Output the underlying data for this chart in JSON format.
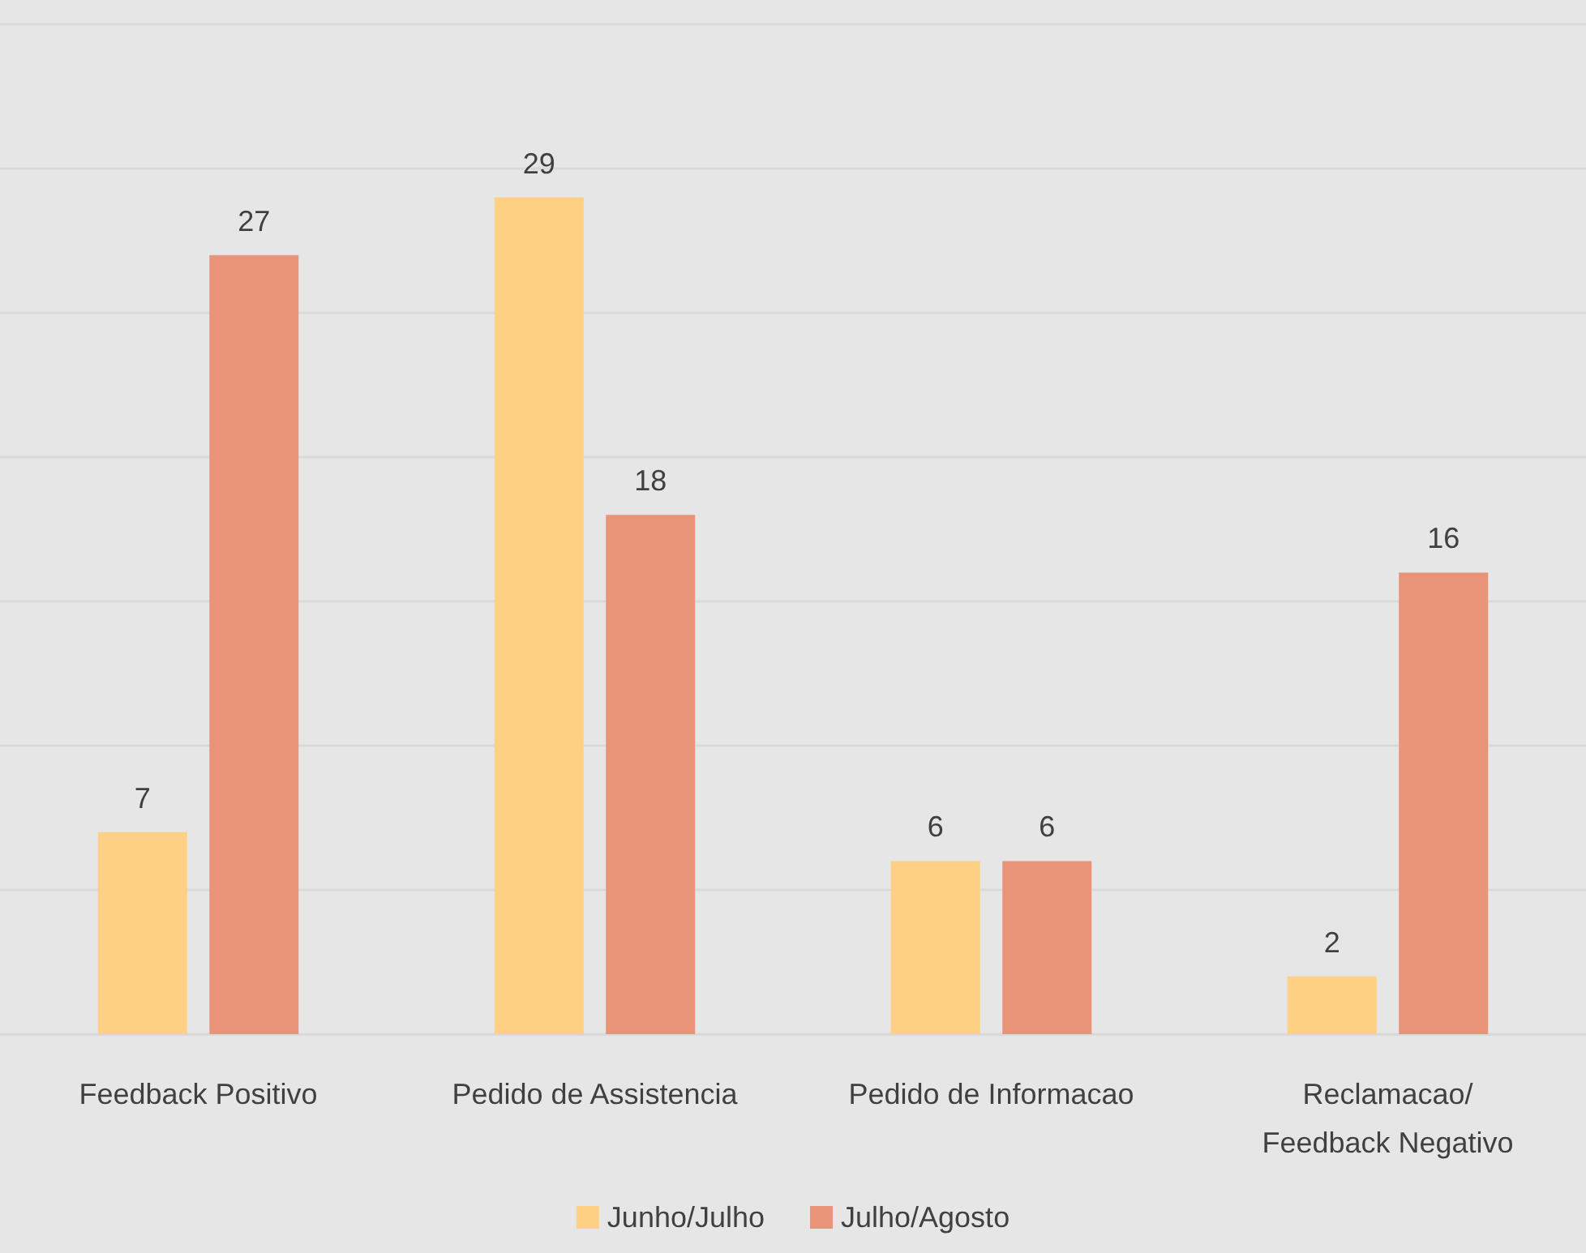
{
  "chart_data": {
    "type": "bar",
    "categories": [
      "Feedback Positivo",
      "Pedido de Assistencia",
      "Pedido de Informacao",
      "Reclamacao/\nFeedback Negativo"
    ],
    "series": [
      {
        "name": "Junho/Julho",
        "color": "#fdd083",
        "values": [
          7,
          29,
          6,
          2
        ]
      },
      {
        "name": "Julho/Agosto",
        "color": "#e99379",
        "values": [
          27,
          18,
          6,
          16
        ]
      }
    ],
    "ylim": [
      0,
      35
    ],
    "yticks": [
      {
        "value": 0,
        "label": null
      },
      {
        "value": 5,
        "label": null
      },
      {
        "value": 10,
        "label": null
      },
      {
        "value": 15,
        "label": null
      },
      {
        "value": 20,
        "label": null
      },
      {
        "value": 25,
        "label": null
      },
      {
        "value": 30,
        "label": null
      },
      {
        "value": 35,
        "label": null
      }
    ],
    "tick_labels": "x",
    "grid": "y",
    "legend": "bottom",
    "data_labels": true
  }
}
